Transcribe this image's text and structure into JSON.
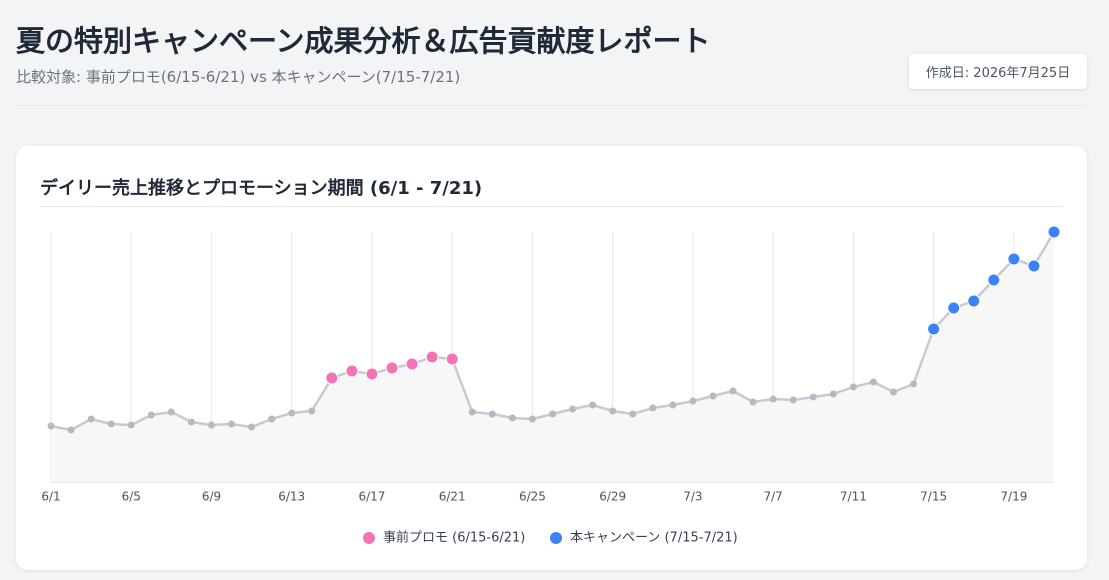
{
  "header": {
    "title": "夏の特別キャンペーン成果分析＆広告貢献度レポート",
    "subtitle": "比較対象: 事前プロモ(6/15-6/21) vs 本キャンペーン(7/15-7/21)",
    "created": "作成日: 2026年7月25日"
  },
  "chart_data": {
    "type": "line",
    "title": "デイリー売上推移とプロモーション期間 (6/1 - 7/21)",
    "categories": [
      "6/1",
      null,
      null,
      null,
      "6/5",
      null,
      null,
      null,
      "6/9",
      null,
      null,
      null,
      "6/13",
      null,
      null,
      null,
      "6/17",
      null,
      null,
      null,
      "6/21",
      null,
      null,
      null,
      "6/25",
      null,
      null,
      null,
      "6/29",
      null,
      null,
      null,
      "7/3",
      null,
      null,
      null,
      "7/7",
      null,
      null,
      null,
      "7/11",
      null,
      null,
      null,
      "7/15",
      null,
      null,
      null,
      "7/19",
      null,
      null
    ],
    "ylim": [
      0,
      100
    ],
    "grid": true,
    "series": [
      {
        "color": "#c9cad1",
        "values": [
          22.4,
          20.8,
          25.2,
          23.2,
          22.8,
          26.8,
          28,
          24,
          22.8,
          23.2,
          22,
          25.2,
          27.6,
          28.4,
          41.6,
          44.4,
          43.2,
          45.6,
          47.2,
          50,
          49.2,
          28,
          27.2,
          25.6,
          25.2,
          27.2,
          29.2,
          30.8,
          28.4,
          27.2,
          29.6,
          30.8,
          32.4,
          34.4,
          36.4,
          32,
          33.2,
          32.8,
          34,
          35.2,
          38,
          40,
          36,
          39.2,
          61.2,
          69.6,
          72.4,
          80.8,
          89.2,
          86.4,
          100
        ]
      },
      {
        "name": "事前プロモ (6/15-6/21)",
        "color": "#f472b6",
        "values": [
          null,
          null,
          null,
          null,
          null,
          null,
          null,
          null,
          null,
          null,
          null,
          null,
          null,
          null,
          41.6,
          44.4,
          43.2,
          45.6,
          47.2,
          50,
          49.2,
          null,
          null,
          null,
          null,
          null,
          null,
          null,
          null,
          null,
          null,
          null,
          null,
          null,
          null,
          null,
          null,
          null,
          null,
          null,
          null,
          null,
          null,
          null,
          null,
          null,
          null,
          null,
          null,
          null,
          null
        ]
      },
      {
        "name": "本キャンペーン (7/15-7/21)",
        "color": "#3b82f6",
        "values": [
          null,
          null,
          null,
          null,
          null,
          null,
          null,
          null,
          null,
          null,
          null,
          null,
          null,
          null,
          null,
          null,
          null,
          null,
          null,
          null,
          null,
          null,
          null,
          null,
          null,
          null,
          null,
          null,
          null,
          null,
          null,
          null,
          null,
          null,
          null,
          null,
          null,
          null,
          null,
          null,
          null,
          null,
          null,
          null,
          61.2,
          69.6,
          72.4,
          80.8,
          89.2,
          86.4,
          100
        ]
      }
    ]
  }
}
